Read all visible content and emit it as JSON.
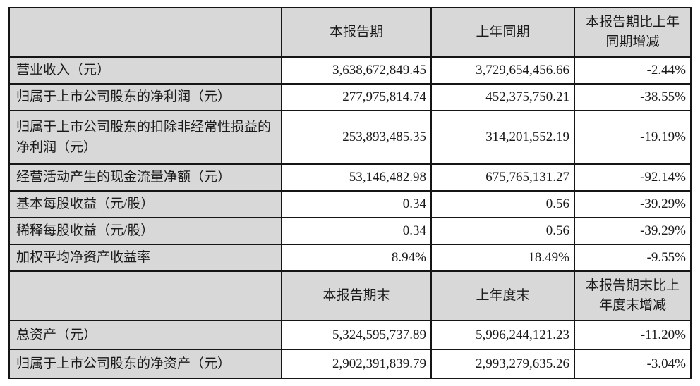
{
  "table": {
    "sections": [
      {
        "header": {
          "label": "",
          "period": "本报告期",
          "prior": "上年同期",
          "change": "本报告期比上年同期增减"
        },
        "rows": [
          {
            "label": "营业收入（元）",
            "period": "3,638,672,849.45",
            "prior": "3,729,654,456.66",
            "change": "-2.44%"
          },
          {
            "label": "归属于上市公司股东的净利润（元）",
            "period": "277,975,814.74",
            "prior": "452,375,750.21",
            "change": "-38.55%"
          },
          {
            "label": "归属于上市公司股东的扣除非经常性损益的净利润（元）",
            "period": "253,893,485.35",
            "prior": "314,201,552.19",
            "change": "-19.19%"
          },
          {
            "label": "经营活动产生的现金流量净额（元）",
            "period": "53,146,482.98",
            "prior": "675,765,131.27",
            "change": "-92.14%"
          },
          {
            "label": "基本每股收益（元/股）",
            "period": "0.34",
            "prior": "0.56",
            "change": "-39.29%"
          },
          {
            "label": "稀释每股收益（元/股）",
            "period": "0.34",
            "prior": "0.56",
            "change": "-39.29%"
          },
          {
            "label": "加权平均净资产收益率",
            "period": "8.94%",
            "prior": "18.49%",
            "change": "-9.55%"
          }
        ]
      },
      {
        "header": {
          "label": "",
          "period": "本报告期末",
          "prior": "上年度末",
          "change": "本报告期末比上年度末增减"
        },
        "rows": [
          {
            "label": "总资产（元）",
            "period": "5,324,595,737.89",
            "prior": "5,996,244,121.23",
            "change": "-11.20%"
          },
          {
            "label": "归属于上市公司股东的净资产（元）",
            "period": "2,902,391,839.79",
            "prior": "2,993,279,635.26",
            "change": "-3.04%"
          }
        ]
      }
    ],
    "colors": {
      "header_fill": "#d8d8d8",
      "cell_fill": "#ffffff",
      "border": "#151515",
      "text": "#1a1a1a"
    }
  }
}
